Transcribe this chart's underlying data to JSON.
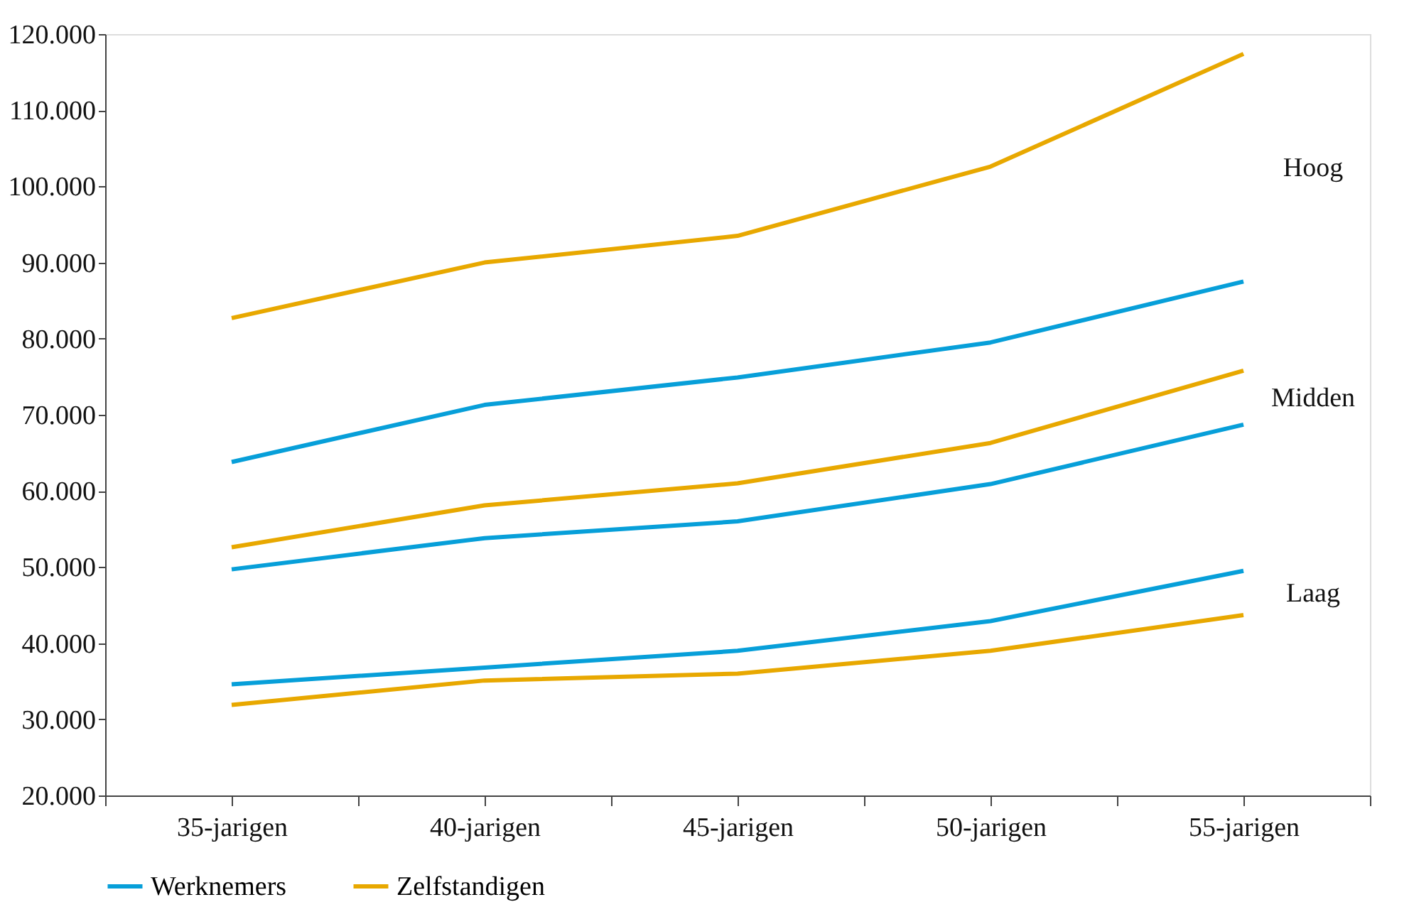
{
  "chart_data": {
    "type": "line",
    "categories": [
      "35-jarigen",
      "40-jarigen",
      "45-jarigen",
      "50-jarigen",
      "55-jarigen"
    ],
    "series": [
      {
        "name": "Werknemers",
        "color": "#079fd9",
        "values": [
          63800,
          71300,
          74900,
          79500,
          87500
        ]
      },
      {
        "color": "#079fd9",
        "values": [
          49700,
          53800,
          56000,
          60900,
          68700
        ]
      },
      {
        "color": "#079fd9",
        "values": [
          34600,
          36800,
          39000,
          42900,
          49500
        ]
      },
      {
        "name": "Zelfstandigen",
        "color": "#e8a800",
        "values": [
          82700,
          90000,
          93500,
          102600,
          117400
        ]
      },
      {
        "color": "#e8a800",
        "values": [
          52600,
          58100,
          61000,
          66300,
          75800
        ]
      },
      {
        "color": "#e8a800",
        "values": [
          31900,
          35100,
          36000,
          39000,
          43700
        ]
      }
    ],
    "annotations": [
      "Hoog",
      "Midden",
      "Laag"
    ],
    "ylim": [
      20000,
      120000
    ],
    "yticks": [
      {
        "value": 20000,
        "label": "20.000"
      },
      {
        "value": 30000,
        "label": "30.000"
      },
      {
        "value": 40000,
        "label": "40.000"
      },
      {
        "value": 50000,
        "label": "50.000"
      },
      {
        "value": 60000,
        "label": "60.000"
      },
      {
        "value": 70000,
        "label": "70.000"
      },
      {
        "value": 80000,
        "label": "80.000"
      },
      {
        "value": 90000,
        "label": "90.000"
      },
      {
        "value": 100000,
        "label": "100.000"
      },
      {
        "value": 110000,
        "label": "110.000"
      },
      {
        "value": 120000,
        "label": "120.000"
      }
    ],
    "grid": false,
    "legend": "bottom",
    "marker": "none",
    "line_style": "solid"
  }
}
